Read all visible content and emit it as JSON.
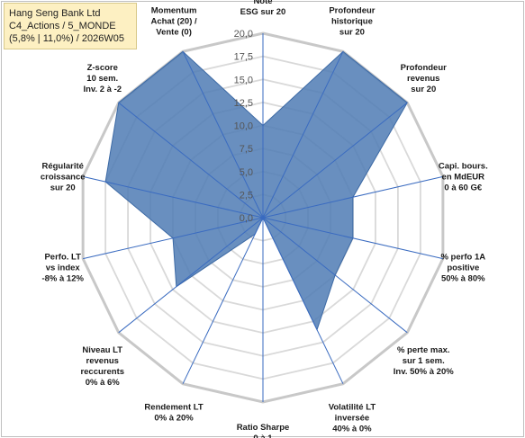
{
  "title_box": {
    "line1": "Hang Seng Bank Ltd",
    "line2": "C4_Actions / 5_MONDE",
    "line3": "(5,8% | 11,0%) / 2026W05"
  },
  "chart_data": {
    "type": "radar",
    "r_range": [
      0,
      20
    ],
    "r_ticks": [
      "0,0",
      "2,5",
      "5,0",
      "7,5",
      "10,0",
      "12,5",
      "15,0",
      "17,5",
      "20,0"
    ],
    "axes": [
      [
        "Note",
        "ESG sur 20"
      ],
      [
        "Profondeur",
        "historique",
        "sur 20"
      ],
      [
        "Profondeur",
        "revenus",
        "sur 20"
      ],
      [
        "Capi. bours.",
        "en MdEUR",
        "0 à 60 G€"
      ],
      [
        "% perfo 1A",
        "positive",
        "50% à 80%"
      ],
      [
        "% perte max.",
        "sur 1 sem.",
        "Inv. 50% à 20%"
      ],
      [
        "Volatilité LT",
        "inversée",
        "40% à 0%"
      ],
      [
        "Ratio Sharpe",
        "0 à 1"
      ],
      [
        "Rendement LT",
        "0% à 20%"
      ],
      [
        "Niveau LT",
        "revenus",
        "reccurents",
        "0% à 6%"
      ],
      [
        "Perfo. LT",
        "vs index",
        "-8% à 12%"
      ],
      [
        "Régularité",
        "croissance",
        "sur 20"
      ],
      [
        "Z-score",
        "10 sem.",
        "Inv. 2 à -2"
      ],
      [
        "Momentum",
        "Achat (20) /",
        "Vente (0)"
      ]
    ],
    "values": [
      10,
      20,
      20,
      10,
      10,
      10,
      13.5,
      0,
      2,
      12,
      10,
      17.5,
      20,
      20
    ],
    "fill_color": "#4f7bb4",
    "fill_opacity": 0.85,
    "grid": true
  }
}
